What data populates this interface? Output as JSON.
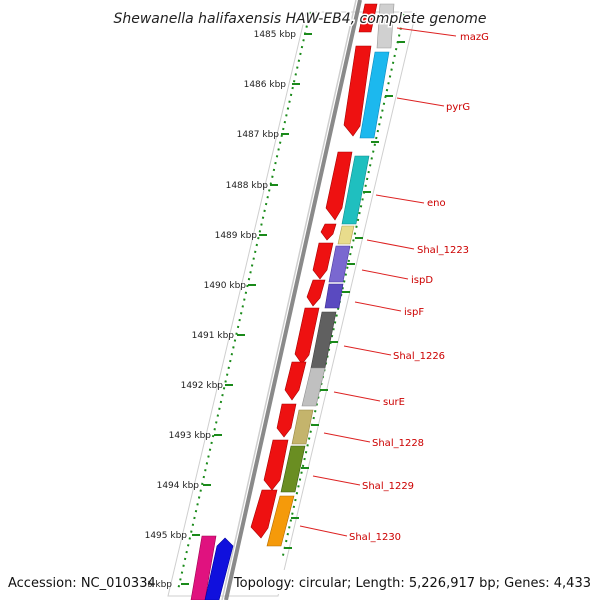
{
  "title": "Shewanella halifaxensis HAW-EB4, complete genome",
  "accession": "Accession: NC_010334",
  "topology": "Topology: circular; Length: 5,226,917 bp; Genes: 4,433",
  "scale_labels": [
    "1485 kbp",
    "1486 kbp",
    "1487 kbp",
    "1488 kbp",
    "1489 kbp",
    "1490 kbp",
    "1491 kbp",
    "1492 kbp",
    "1493 kbp",
    "1494 kbp",
    "1495 kbp",
    "1496 kbp"
  ],
  "genes": [
    {
      "label": "mazG",
      "color": "#d0d0d0"
    },
    {
      "label": "pyrG",
      "color": "#1cb8ee"
    },
    {
      "label": "eno",
      "color": "#1fbfbf"
    },
    {
      "label": "Shal_1223",
      "color": "#e8dc8c"
    },
    {
      "label": "ispD",
      "color": "#7a68d0"
    },
    {
      "label": "ispF",
      "color": "#5a4ac0"
    },
    {
      "label": "Shal_1226",
      "color": "#606060"
    },
    {
      "label": "surE",
      "color": "#c0c0c0"
    },
    {
      "label": "Shal_1228",
      "color": "#c4b46c"
    },
    {
      "label": "Shal_1229",
      "color": "#6a8e22"
    },
    {
      "label": "Shal_1230",
      "color": "#f59a0a"
    }
  ],
  "colors": {
    "cds_strand": "#ee1111",
    "backbone": "#888888",
    "tick": "#228822",
    "label_line": "#dd2222",
    "extra_magenta": "#e0127f",
    "extra_blue": "#1010dd"
  }
}
